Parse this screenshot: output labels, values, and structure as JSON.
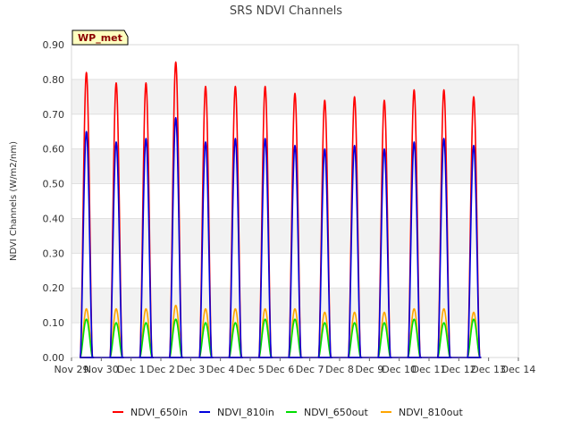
{
  "chart_data": {
    "type": "line",
    "title": "SRS NDVI Channels",
    "xlabel": "",
    "ylabel": "NDVI Channels (W/m2/nm)",
    "ylim": [
      0.0,
      0.9
    ],
    "xlim": [
      "2022-11-29",
      "2022-12-14"
    ],
    "x_tick_labels": [
      "Nov 29",
      "Nov 30",
      "Dec 1",
      "Dec 2",
      "Dec 3",
      "Dec 4",
      "Dec 5",
      "Dec 6",
      "Dec 7",
      "Dec 8",
      "Dec 9",
      "Dec 10",
      "Dec 11",
      "Dec 12",
      "Dec 13",
      "Dec 14"
    ],
    "y_tick_labels": [
      "0.00",
      "0.10",
      "0.20",
      "0.30",
      "0.40",
      "0.50",
      "0.60",
      "0.70",
      "0.80",
      "0.90"
    ],
    "grid": "horizontal bands",
    "legend_position": "bottom",
    "annotation": "WP_met",
    "days": [
      "2022-11-30",
      "2022-12-01",
      "2022-12-02",
      "2022-12-03",
      "2022-12-04",
      "2022-12-05",
      "2022-12-06",
      "2022-12-07",
      "2022-12-08",
      "2022-12-09",
      "2022-12-10",
      "2022-12-11",
      "2022-12-12",
      "2022-12-13"
    ],
    "series": [
      {
        "name": "NDVI_650in",
        "color": "#ff0000",
        "daily_peak": [
          0.82,
          0.79,
          0.79,
          0.85,
          0.78,
          0.78,
          0.78,
          0.76,
          0.74,
          0.75,
          0.74,
          0.77,
          0.77,
          0.75
        ]
      },
      {
        "name": "NDVI_810in",
        "color": "#0000dd",
        "daily_peak": [
          0.65,
          0.62,
          0.63,
          0.69,
          0.62,
          0.63,
          0.63,
          0.61,
          0.6,
          0.61,
          0.6,
          0.62,
          0.63,
          0.61
        ]
      },
      {
        "name": "NDVI_650out",
        "color": "#00dd00",
        "daily_peak": [
          0.11,
          0.1,
          0.1,
          0.11,
          0.1,
          0.1,
          0.11,
          0.11,
          0.1,
          0.1,
          0.1,
          0.11,
          0.1,
          0.11
        ]
      },
      {
        "name": "NDVI_810out",
        "color": "#ffa500",
        "daily_peak": [
          0.14,
          0.14,
          0.14,
          0.15,
          0.14,
          0.14,
          0.14,
          0.14,
          0.13,
          0.13,
          0.13,
          0.14,
          0.14,
          0.13
        ]
      }
    ]
  }
}
